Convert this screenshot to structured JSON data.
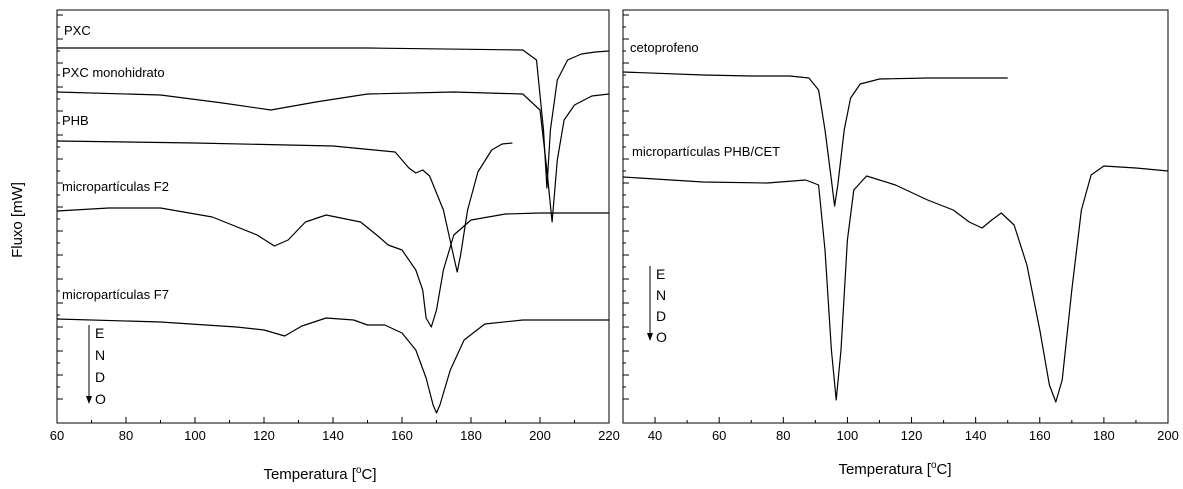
{
  "y_axis_label": "Fluxo [mW]",
  "chart_data": [
    {
      "type": "line",
      "xlabel_main": "Temperatura [",
      "xlabel_sup": "o",
      "xlabel_end": "C]",
      "xlim": [
        60,
        220
      ],
      "xticks": [
        60,
        80,
        100,
        120,
        140,
        160,
        180,
        200,
        220
      ],
      "y_ticks_labeled": false,
      "endo_letters": [
        "E",
        "N",
        "D",
        "O"
      ],
      "series": [
        {
          "name": "PXC",
          "points": [
            [
              60,
              38
            ],
            [
              150,
              38
            ],
            [
              195,
              40
            ],
            [
              199,
              50
            ],
            [
              201,
              120
            ],
            [
              202,
              178
            ],
            [
              203,
              120
            ],
            [
              205,
              70
            ],
            [
              208,
              50
            ],
            [
              212,
              44
            ],
            [
              216,
              42
            ],
            [
              220,
              41
            ]
          ]
        },
        {
          "name": "PXC monohidrato",
          "points": [
            [
              60,
              82
            ],
            [
              90,
              85
            ],
            [
              108,
              93
            ],
            [
              122,
              100
            ],
            [
              135,
              92
            ],
            [
              150,
              84
            ],
            [
              175,
              82
            ],
            [
              195,
              84
            ],
            [
              200,
              100
            ],
            [
              202,
              160
            ],
            [
              203.5,
              212
            ],
            [
              205,
              150
            ],
            [
              207,
              110
            ],
            [
              210,
              95
            ],
            [
              215,
              86
            ],
            [
              220,
              84
            ]
          ]
        },
        {
          "name": "PHB",
          "points": [
            [
              60,
              131
            ],
            [
              100,
              133
            ],
            [
              140,
              136
            ],
            [
              158,
              142
            ],
            [
              162,
              158
            ],
            [
              164,
              163
            ],
            [
              166,
              160
            ],
            [
              168,
              166
            ],
            [
              172,
              200
            ],
            [
              175,
              247
            ],
            [
              176,
              262
            ],
            [
              177,
              245
            ],
            [
              179,
              200
            ],
            [
              182,
              162
            ],
            [
              186,
              140
            ],
            [
              189,
              134
            ],
            [
              192,
              133
            ]
          ]
        },
        {
          "name": "micropartículas F2",
          "points": [
            [
              60,
              201
            ],
            [
              75,
              198
            ],
            [
              90,
              198
            ],
            [
              105,
              207
            ],
            [
              118,
              225
            ],
            [
              123,
              236
            ],
            [
              127,
              230
            ],
            [
              132,
              212
            ],
            [
              138,
              205
            ],
            [
              148,
              212
            ],
            [
              153,
              226
            ],
            [
              156,
              235
            ],
            [
              160,
              240
            ],
            [
              164,
              260
            ],
            [
              166,
              280
            ],
            [
              167,
              308
            ],
            [
              168.5,
              317
            ],
            [
              170,
              300
            ],
            [
              172,
              260
            ],
            [
              175,
              225
            ],
            [
              180,
              210
            ],
            [
              190,
              204
            ],
            [
              200,
              203
            ],
            [
              220,
              203
            ]
          ]
        },
        {
          "name": "micropartículas F7",
          "points": [
            [
              60,
              309
            ],
            [
              90,
              312
            ],
            [
              112,
              317
            ],
            [
              120,
              320
            ],
            [
              126,
              326
            ],
            [
              131,
              316
            ],
            [
              138,
              308
            ],
            [
              146,
              310
            ],
            [
              150,
              315
            ],
            [
              155,
              315
            ],
            [
              160,
              323
            ],
            [
              164,
              340
            ],
            [
              167,
              368
            ],
            [
              169,
              395
            ],
            [
              170,
              403
            ],
            [
              171,
              395
            ],
            [
              174,
              360
            ],
            [
              178,
              330
            ],
            [
              184,
              314
            ],
            [
              195,
              310
            ],
            [
              220,
              310
            ]
          ]
        }
      ]
    },
    {
      "type": "line",
      "xlabel_main": "Temperatura [",
      "xlabel_sup": "o",
      "xlabel_end": "C]",
      "xlim": [
        30,
        200
      ],
      "xticks": [
        40,
        60,
        80,
        100,
        120,
        140,
        160,
        180,
        200
      ],
      "y_ticks_labeled": false,
      "endo_letters": [
        "E",
        "N",
        "D",
        "O"
      ],
      "series": [
        {
          "name": "cetoprofeno",
          "points": [
            [
              30,
              62
            ],
            [
              55,
              65
            ],
            [
              70,
              66
            ],
            [
              82,
              66
            ],
            [
              88,
              68
            ],
            [
              91,
              80
            ],
            [
              93,
              120
            ],
            [
              95,
              170
            ],
            [
              96,
              196
            ],
            [
              97,
              175
            ],
            [
              99,
              120
            ],
            [
              101,
              88
            ],
            [
              104,
              74
            ],
            [
              110,
              69
            ],
            [
              125,
              68
            ],
            [
              140,
              68
            ],
            [
              150,
              68
            ]
          ]
        },
        {
          "name": "micropartículas PHB/CET",
          "points": [
            [
              30,
              167
            ],
            [
              55,
              172
            ],
            [
              75,
              173
            ],
            [
              87,
              170
            ],
            [
              91,
              175
            ],
            [
              93,
              240
            ],
            [
              95,
              340
            ],
            [
              96.5,
              390
            ],
            [
              98,
              340
            ],
            [
              100,
              230
            ],
            [
              102,
              180
            ],
            [
              106,
              166
            ],
            [
              115,
              175
            ],
            [
              125,
              190
            ],
            [
              133,
              200
            ],
            [
              138,
              212
            ],
            [
              142,
              218
            ],
            [
              145,
              210
            ],
            [
              148,
              203
            ],
            [
              152,
              215
            ],
            [
              156,
              255
            ],
            [
              160,
              320
            ],
            [
              163,
              375
            ],
            [
              165,
              392
            ],
            [
              167,
              370
            ],
            [
              170,
              280
            ],
            [
              173,
              200
            ],
            [
              176,
              165
            ],
            [
              180,
              156
            ],
            [
              190,
              158
            ],
            [
              200,
              161
            ]
          ]
        }
      ]
    }
  ]
}
